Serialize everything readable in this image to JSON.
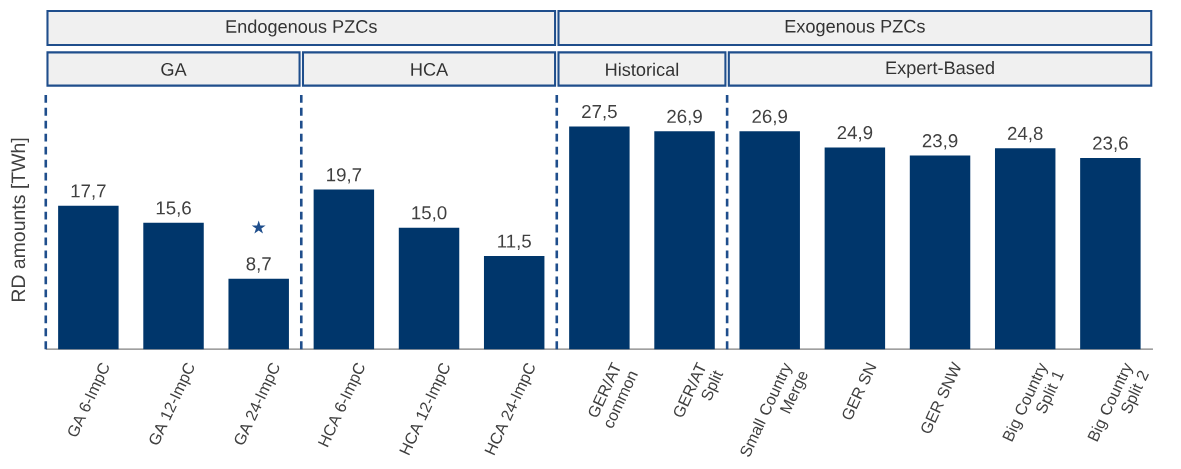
{
  "chart_data": {
    "type": "bar",
    "ylabel": "RD amounts [TWh]",
    "categories": [
      "GA 6-ImpC",
      "GA 12-ImpC",
      "GA 24-ImpC",
      "HCA 6-ImpC",
      "HCA 12-ImpC",
      "HCA 24-ImpC",
      "GER/AT common",
      "GER/AT Split",
      "Small Country Merge",
      "GER SN",
      "GER SNW",
      "Big Country Split 1",
      "Big Country Split 2"
    ],
    "values": [
      17.7,
      15.6,
      8.7,
      19.7,
      15.0,
      11.5,
      27.5,
      26.9,
      26.9,
      24.9,
      23.9,
      24.8,
      23.6
    ],
    "value_labels": [
      "17,7",
      "15,6",
      "8,7",
      "19,7",
      "15,0",
      "11,5",
      "27,5",
      "26,9",
      "26,9",
      "24,9",
      "23,9",
      "24,8",
      "23,6"
    ],
    "color": "#00366b",
    "annotations": [
      "Endogenous PZCs",
      "Exogenous PZCs",
      "GA",
      "HCA",
      "Historical",
      "Expert-Based",
      "★"
    ]
  }
}
